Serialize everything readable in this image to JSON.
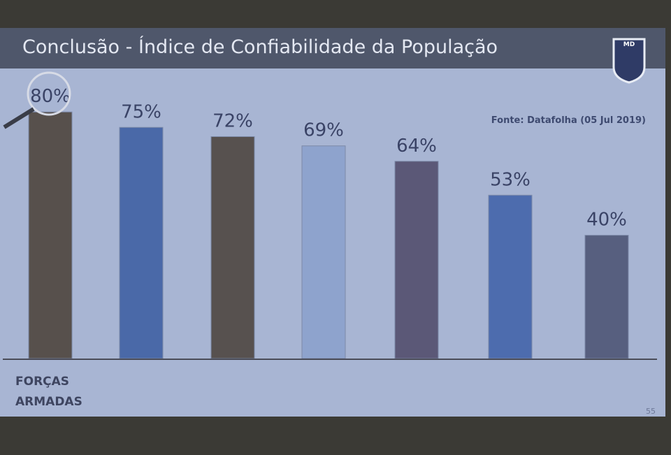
{
  "chart_data": {
    "type": "bar",
    "title": "Conclusão - Índice de Confiabilidade da População",
    "source": "Fonte: Datafolha (05 Jul 2019)",
    "categories": [
      "FORÇAS ARMADAS",
      null,
      null,
      null,
      null,
      null,
      null
    ],
    "values": [
      80,
      75,
      72,
      69,
      64,
      53,
      40
    ],
    "value_labels": [
      "80%",
      "75%",
      "72%",
      "69%",
      "64%",
      "53%",
      "40%"
    ],
    "colors": [
      "#57504c",
      "#4a69a8",
      "#57514f",
      "#8ea3cd",
      "#5b5877",
      "#4d6cae",
      "#575f7f"
    ],
    "ylim": [
      0,
      100
    ]
  },
  "logo_text": "MD",
  "page_number": "55"
}
